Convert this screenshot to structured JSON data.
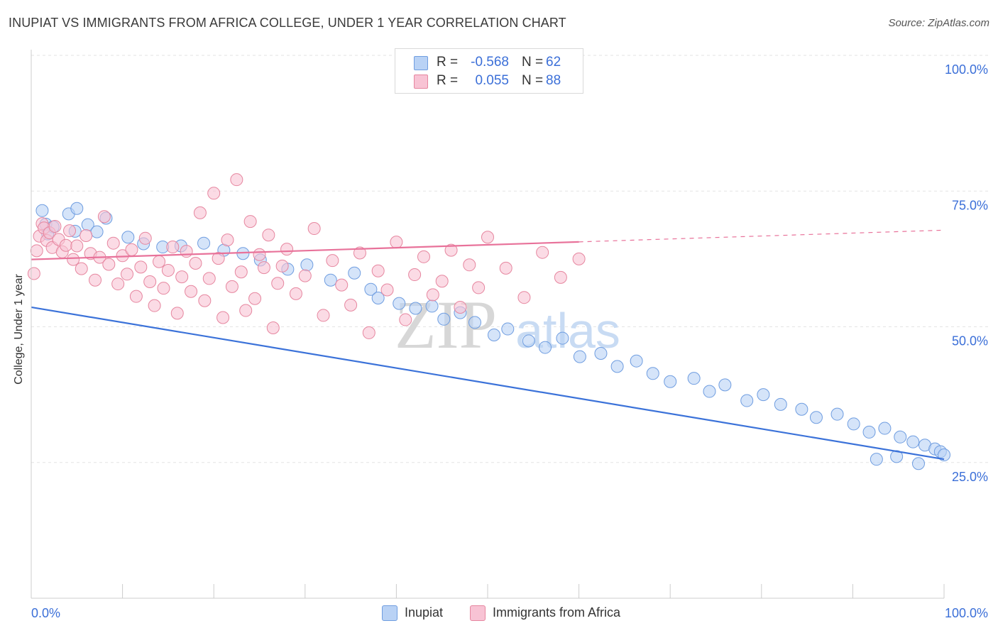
{
  "title": "INUPIAT VS IMMIGRANTS FROM AFRICA COLLEGE, UNDER 1 YEAR CORRELATION CHART",
  "source": "Source: ZipAtlas.com",
  "watermark": {
    "zip": "ZIP",
    "atlas": "atlas"
  },
  "legend": {
    "rows": [
      {
        "r_label": "R =",
        "r_value": "-0.568",
        "n_label": "N =",
        "n_value": "62",
        "swatch_fill": "#b9d2f5",
        "swatch_stroke": "#6f9de0"
      },
      {
        "r_label": "R =",
        "r_value": "0.055",
        "n_label": "N =",
        "n_value": "88",
        "swatch_fill": "#f8c3d4",
        "swatch_stroke": "#e6869f"
      }
    ]
  },
  "bottom_legend": [
    {
      "label": "Inupiat",
      "fill": "#b9d2f5",
      "stroke": "#6f9de0"
    },
    {
      "label": "Immigrants from Africa",
      "fill": "#f8c3d4",
      "stroke": "#e6869f"
    }
  ],
  "chart_data": {
    "type": "scatter",
    "xlabel": "",
    "ylabel": "College, Under 1 year",
    "xlim": [
      0,
      100
    ],
    "ylim": [
      0,
      100
    ],
    "x_tick_labels": [
      "0.0%",
      "100.0%"
    ],
    "y_tick_labels": [
      "100.0%",
      "75.0%",
      "50.0%",
      "25.0%"
    ],
    "y_ticks": [
      100,
      75,
      50,
      25
    ],
    "grid": true,
    "colors": {
      "blue": "#3b72d9",
      "pink": "#e8729a",
      "axis_text": "#3b6fd8"
    },
    "series": [
      {
        "name": "Inupiat",
        "color": "#6f9de0",
        "fill": "#b9d2f5",
        "trend": {
          "x": [
            0,
            100
          ],
          "y": [
            53.6,
            25.6
          ],
          "dashed_from": null
        },
        "points": [
          [
            1.2,
            71.4
          ],
          [
            1.6,
            68.9
          ],
          [
            2.4,
            68.4
          ],
          [
            1.8,
            67.1
          ],
          [
            4.1,
            70.8
          ],
          [
            4.8,
            67.6
          ],
          [
            6.2,
            68.8
          ],
          [
            5.0,
            71.8
          ],
          [
            7.2,
            67.5
          ],
          [
            8.2,
            70.0
          ],
          [
            10.6,
            66.5
          ],
          [
            12.3,
            65.3
          ],
          [
            14.4,
            64.7
          ],
          [
            16.4,
            64.9
          ],
          [
            18.9,
            65.4
          ],
          [
            21.1,
            64.1
          ],
          [
            23.2,
            63.5
          ],
          [
            25.1,
            62.3
          ],
          [
            28.1,
            60.6
          ],
          [
            30.2,
            61.4
          ],
          [
            32.8,
            58.6
          ],
          [
            35.4,
            59.9
          ],
          [
            37.2,
            56.9
          ],
          [
            38.0,
            55.3
          ],
          [
            40.3,
            54.3
          ],
          [
            42.1,
            53.4
          ],
          [
            43.9,
            53.8
          ],
          [
            45.2,
            51.4
          ],
          [
            47.0,
            52.6
          ],
          [
            48.6,
            50.8
          ],
          [
            50.7,
            48.5
          ],
          [
            52.2,
            49.6
          ],
          [
            54.5,
            47.4
          ],
          [
            56.3,
            46.2
          ],
          [
            58.2,
            47.9
          ],
          [
            60.1,
            44.5
          ],
          [
            62.4,
            45.1
          ],
          [
            64.2,
            42.7
          ],
          [
            66.3,
            43.7
          ],
          [
            68.1,
            41.4
          ],
          [
            70.0,
            39.9
          ],
          [
            72.6,
            40.5
          ],
          [
            74.3,
            38.1
          ],
          [
            76.0,
            39.3
          ],
          [
            78.4,
            36.4
          ],
          [
            80.2,
            37.5
          ],
          [
            82.1,
            35.7
          ],
          [
            84.4,
            34.8
          ],
          [
            86.0,
            33.3
          ],
          [
            88.3,
            33.9
          ],
          [
            90.1,
            32.1
          ],
          [
            91.8,
            30.6
          ],
          [
            93.5,
            31.3
          ],
          [
            95.2,
            29.7
          ],
          [
            96.6,
            28.8
          ],
          [
            97.9,
            28.2
          ],
          [
            99.0,
            27.5
          ],
          [
            99.6,
            27.0
          ],
          [
            100.0,
            26.4
          ],
          [
            97.2,
            24.8
          ],
          [
            94.8,
            26.1
          ],
          [
            92.6,
            25.6
          ]
        ]
      },
      {
        "name": "Immigrants from Africa",
        "color": "#e6869f",
        "fill": "#f8c3d4",
        "trend": {
          "x": [
            0,
            100
          ],
          "y": [
            62.4,
            67.8
          ],
          "dashed_from": 60
        },
        "points": [
          [
            0.3,
            59.8
          ],
          [
            0.6,
            64.0
          ],
          [
            0.9,
            66.7
          ],
          [
            1.2,
            69.0
          ],
          [
            1.4,
            68.2
          ],
          [
            1.7,
            65.9
          ],
          [
            2.0,
            67.3
          ],
          [
            2.3,
            64.6
          ],
          [
            2.6,
            68.5
          ],
          [
            3.0,
            66.1
          ],
          [
            3.4,
            63.8
          ],
          [
            3.8,
            65.0
          ],
          [
            4.2,
            67.7
          ],
          [
            4.6,
            62.4
          ],
          [
            5.0,
            64.9
          ],
          [
            5.5,
            60.7
          ],
          [
            6.0,
            66.8
          ],
          [
            6.5,
            63.5
          ],
          [
            7.0,
            58.6
          ],
          [
            7.5,
            62.8
          ],
          [
            8.0,
            70.3
          ],
          [
            8.5,
            61.5
          ],
          [
            9.0,
            65.4
          ],
          [
            9.5,
            57.9
          ],
          [
            10.0,
            63.1
          ],
          [
            10.5,
            59.7
          ],
          [
            11.0,
            64.2
          ],
          [
            11.5,
            55.6
          ],
          [
            12.0,
            61.0
          ],
          [
            12.5,
            66.3
          ],
          [
            13.0,
            58.3
          ],
          [
            13.5,
            53.9
          ],
          [
            14.0,
            62.0
          ],
          [
            14.5,
            57.1
          ],
          [
            15.0,
            60.4
          ],
          [
            15.5,
            64.7
          ],
          [
            16.0,
            52.5
          ],
          [
            16.5,
            59.2
          ],
          [
            17.0,
            63.9
          ],
          [
            17.5,
            56.5
          ],
          [
            18.0,
            61.7
          ],
          [
            18.5,
            71.0
          ],
          [
            19.0,
            54.8
          ],
          [
            19.5,
            58.9
          ],
          [
            20.0,
            74.6
          ],
          [
            20.5,
            62.6
          ],
          [
            21.0,
            51.7
          ],
          [
            21.5,
            66.0
          ],
          [
            22.0,
            57.4
          ],
          [
            22.5,
            77.1
          ],
          [
            23.0,
            60.1
          ],
          [
            23.5,
            53.0
          ],
          [
            24.0,
            69.4
          ],
          [
            24.5,
            55.2
          ],
          [
            25.0,
            63.3
          ],
          [
            25.5,
            60.9
          ],
          [
            26.0,
            66.9
          ],
          [
            26.5,
            49.8
          ],
          [
            27.0,
            58.0
          ],
          [
            27.5,
            61.2
          ],
          [
            28.0,
            64.3
          ],
          [
            29.0,
            56.1
          ],
          [
            30.0,
            59.4
          ],
          [
            31.0,
            68.1
          ],
          [
            32.0,
            52.1
          ],
          [
            33.0,
            62.2
          ],
          [
            34.0,
            57.7
          ],
          [
            35.0,
            54.0
          ],
          [
            36.0,
            63.6
          ],
          [
            37.0,
            48.9
          ],
          [
            38.0,
            60.3
          ],
          [
            39.0,
            56.8
          ],
          [
            40.0,
            65.6
          ],
          [
            41.0,
            51.3
          ],
          [
            42.0,
            59.6
          ],
          [
            43.0,
            62.9
          ],
          [
            44.0,
            55.9
          ],
          [
            45.0,
            58.4
          ],
          [
            46.0,
            64.1
          ],
          [
            47.0,
            53.6
          ],
          [
            48.0,
            61.4
          ],
          [
            49.0,
            57.2
          ],
          [
            50.0,
            66.5
          ],
          [
            52.0,
            60.8
          ],
          [
            54.0,
            55.4
          ],
          [
            56.0,
            63.7
          ],
          [
            58.0,
            59.1
          ],
          [
            60.0,
            62.5
          ]
        ]
      }
    ]
  }
}
